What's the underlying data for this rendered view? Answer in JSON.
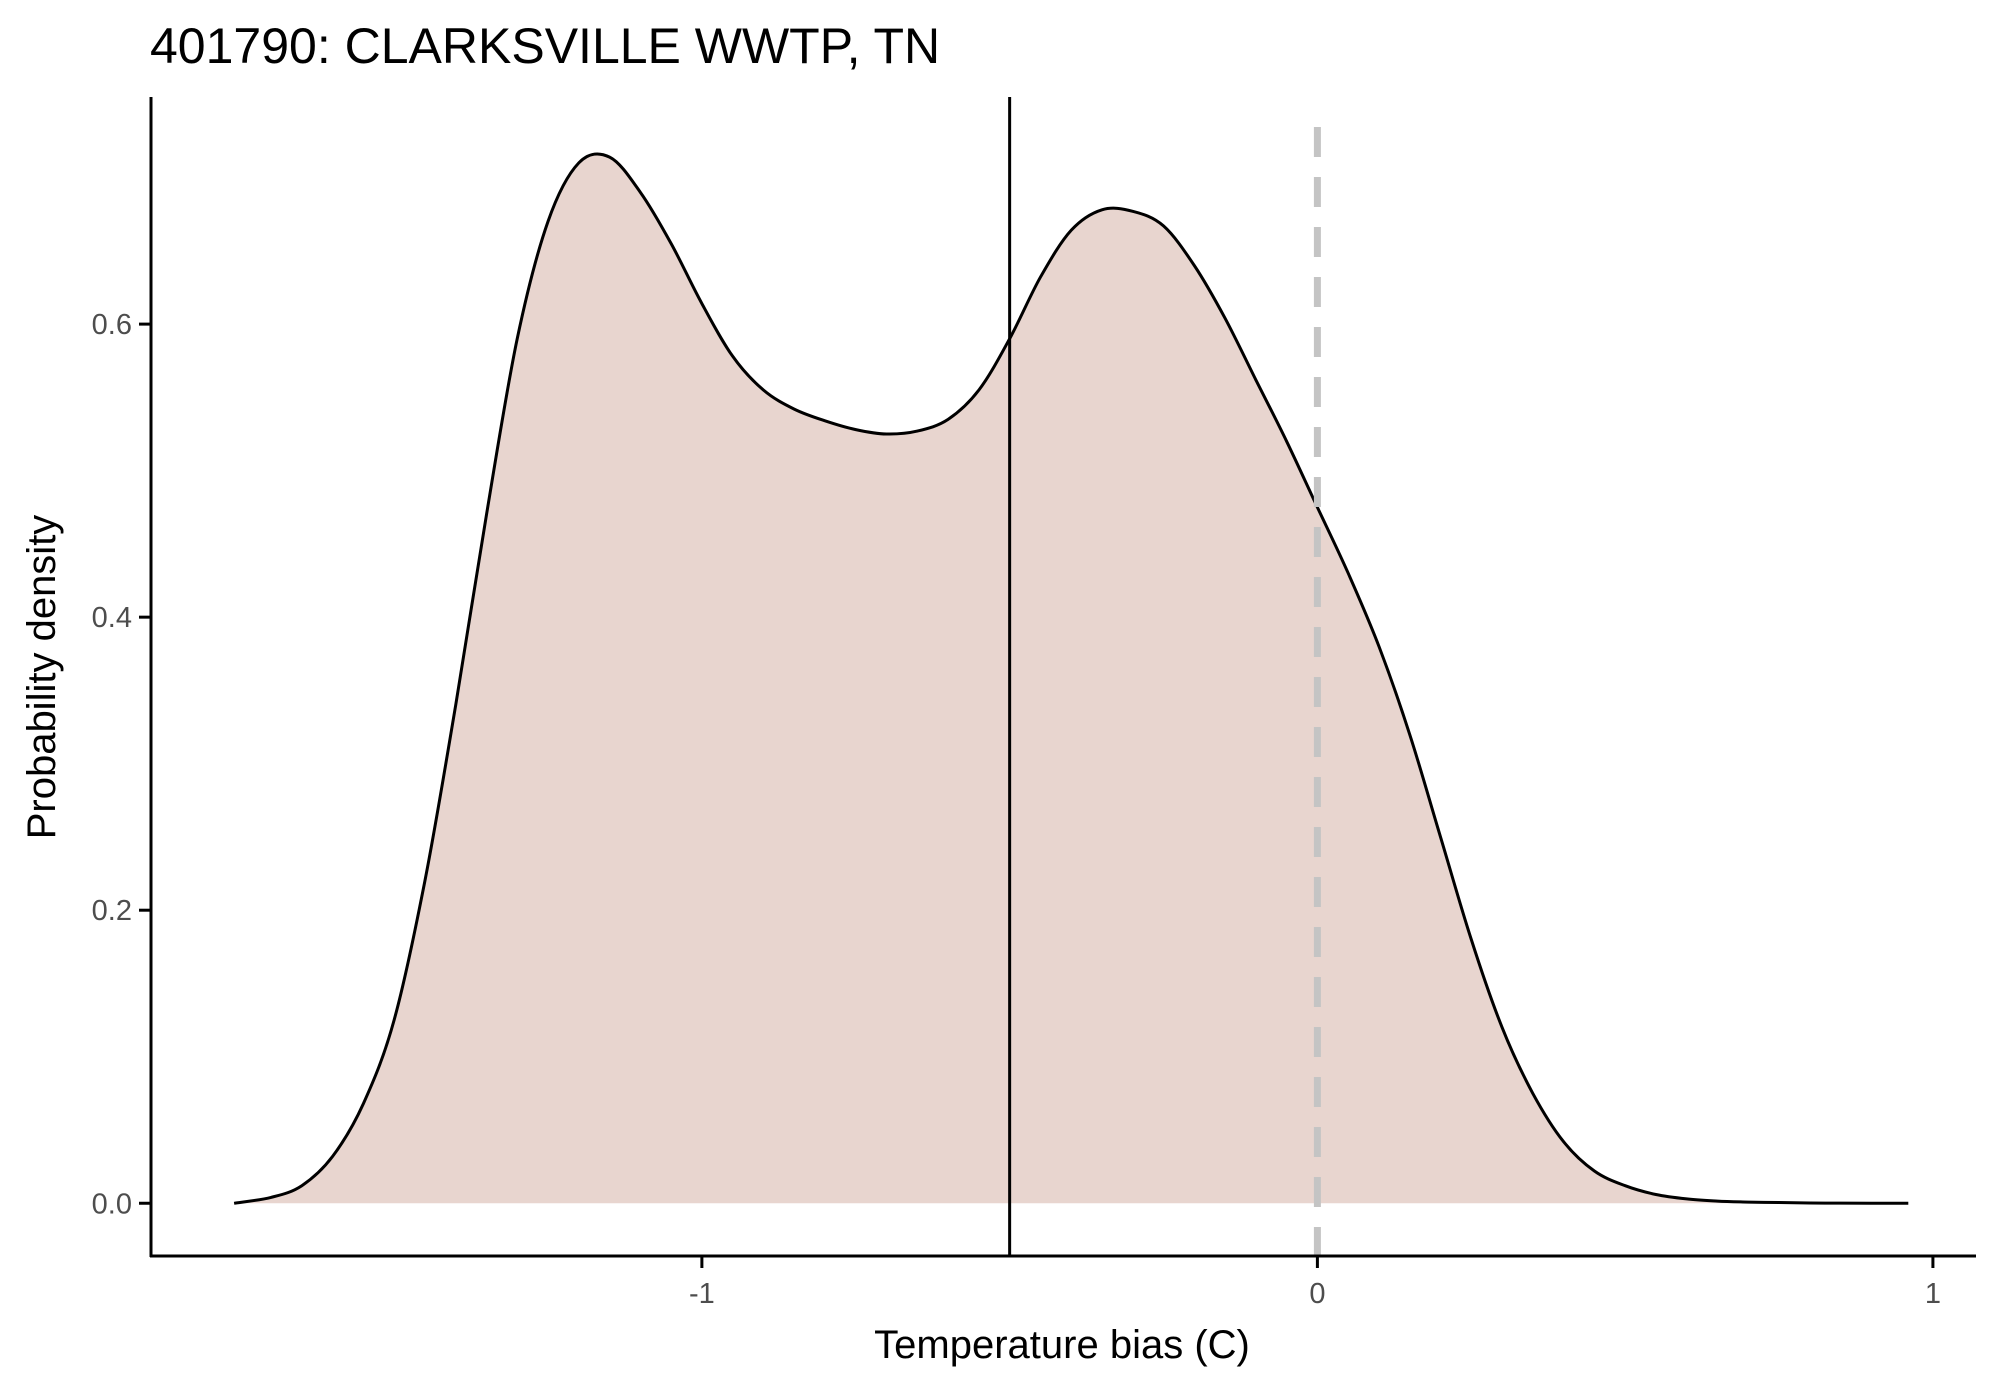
{
  "chart_data": {
    "type": "area",
    "title": "401790: CLARKSVILLE WWTP, TN",
    "xlabel": "Temperature bias (C)",
    "ylabel": "Probability density",
    "xlim": [
      -1.895,
      1.07
    ],
    "ylim": [
      -0.036,
      0.755
    ],
    "x_ticks": [
      -1,
      0,
      1
    ],
    "x_tick_labels": [
      "-1",
      "0",
      "1"
    ],
    "y_ticks": [
      0.0,
      0.2,
      0.4,
      0.6
    ],
    "y_tick_labels": [
      "0.0",
      "0.2",
      "0.4",
      "0.6"
    ],
    "grid": false,
    "legend": "none",
    "series": [
      {
        "x": [
          -1.76,
          -1.7,
          -1.65,
          -1.6,
          -1.55,
          -1.5,
          -1.45,
          -1.4,
          -1.35,
          -1.3,
          -1.25,
          -1.2,
          -1.15,
          -1.1,
          -1.05,
          -1.0,
          -0.95,
          -0.9,
          -0.85,
          -0.8,
          -0.75,
          -0.7,
          -0.65,
          -0.6,
          -0.55,
          -0.5,
          -0.45,
          -0.4,
          -0.35,
          -0.3,
          -0.25,
          -0.2,
          -0.15,
          -0.1,
          -0.05,
          0.0,
          0.05,
          0.1,
          0.15,
          0.2,
          0.25,
          0.3,
          0.35,
          0.4,
          0.45,
          0.5,
          0.55,
          0.6,
          0.65,
          0.7,
          0.75,
          0.8,
          0.85,
          0.9,
          0.95,
          0.96
        ],
        "y": [
          0.0,
          0.004,
          0.012,
          0.032,
          0.068,
          0.125,
          0.22,
          0.34,
          0.47,
          0.59,
          0.67,
          0.71,
          0.714,
          0.69,
          0.655,
          0.614,
          0.578,
          0.555,
          0.542,
          0.534,
          0.528,
          0.525,
          0.527,
          0.535,
          0.555,
          0.59,
          0.632,
          0.664,
          0.678,
          0.677,
          0.667,
          0.64,
          0.604,
          0.562,
          0.52,
          0.475,
          0.43,
          0.38,
          0.32,
          0.25,
          0.18,
          0.12,
          0.075,
          0.042,
          0.022,
          0.012,
          0.006,
          0.003,
          0.0015,
          0.0008,
          0.0005,
          0.0002,
          0.0001,
          0.0,
          0.0,
          0.0
        ]
      }
    ],
    "reference_lines": [
      {
        "x": -0.5,
        "style": "solid"
      },
      {
        "x": 0.0,
        "style": "dashed"
      }
    ],
    "colors": {
      "fill": "#e8d5cf",
      "line": "#000000",
      "ref_solid": "#000000",
      "ref_dashed": "#c4c4c4",
      "axis": "#000000",
      "tick_label": "#4d4d4d"
    }
  }
}
